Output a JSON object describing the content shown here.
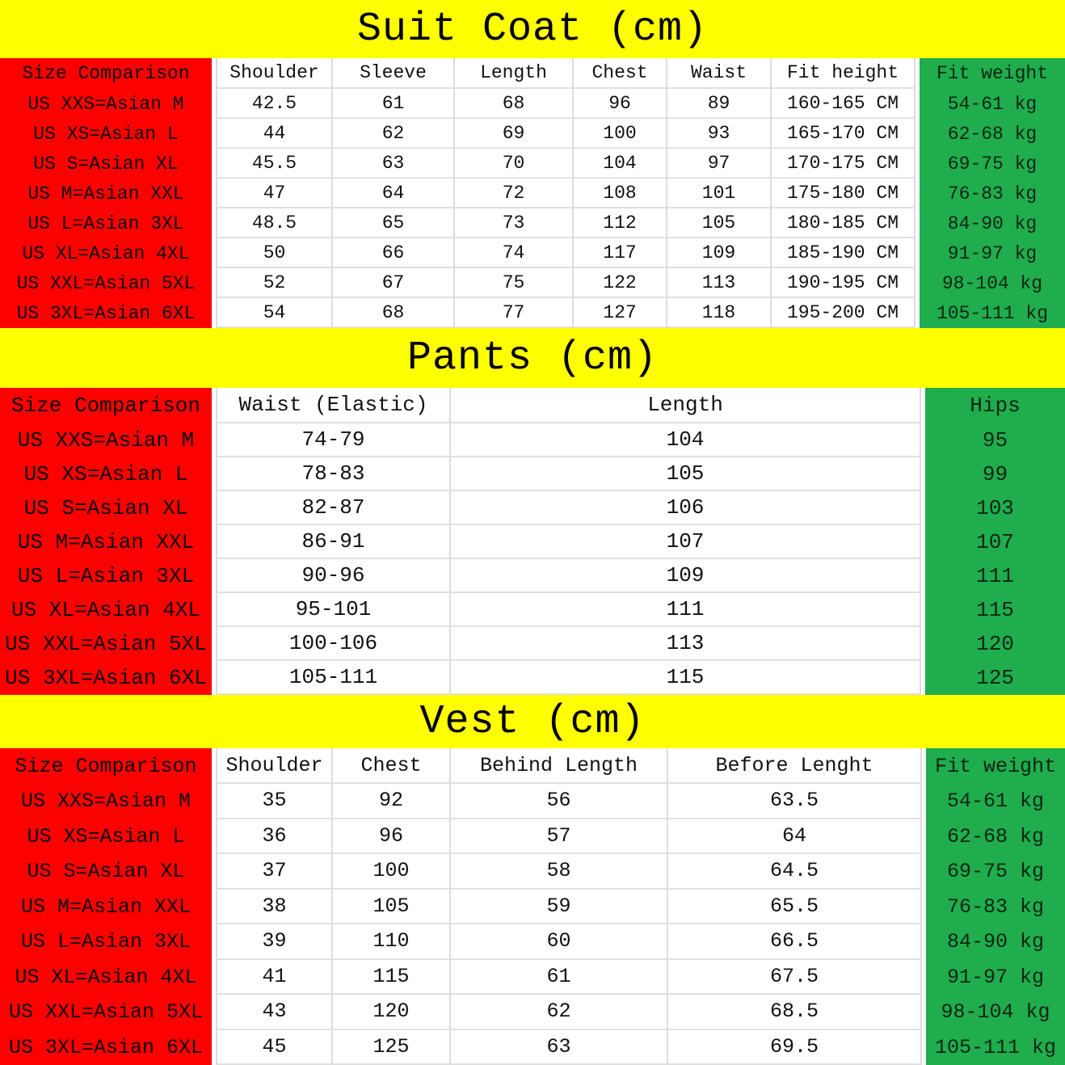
{
  "colors": {
    "banner_yellow": "#ffff00",
    "size_column_red": "#fd0000",
    "accent_column_green": "#1fad4d",
    "grid_line": "#dcdcdc",
    "text": "#000000"
  },
  "tables": [
    {
      "title": "Suit Coat (cm)",
      "headers": [
        "Size Comparison",
        "Shoulder",
        "Sleeve",
        "Length",
        "Chest",
        "Waist",
        "Fit height",
        "Fit weight"
      ],
      "rows": [
        [
          "US XXS=Asian M",
          "42.5",
          "61",
          "68",
          "96",
          "89",
          "160-165 CM",
          "54-61 kg"
        ],
        [
          "US XS=Asian L",
          "44",
          "62",
          "69",
          "100",
          "93",
          "165-170 CM",
          "62-68 kg"
        ],
        [
          "US S=Asian XL",
          "45.5",
          "63",
          "70",
          "104",
          "97",
          "170-175 CM",
          "69-75 kg"
        ],
        [
          "US M=Asian XXL",
          "47",
          "64",
          "72",
          "108",
          "101",
          "175-180 CM",
          "76-83 kg"
        ],
        [
          "US L=Asian 3XL",
          "48.5",
          "65",
          "73",
          "112",
          "105",
          "180-185 CM",
          "84-90 kg"
        ],
        [
          "US XL=Asian 4XL",
          "50",
          "66",
          "74",
          "117",
          "109",
          "185-190 CM",
          "91-97 kg"
        ],
        [
          "US XXL=Asian 5XL",
          "52",
          "67",
          "75",
          "122",
          "113",
          "190-195 CM",
          "98-104 kg"
        ],
        [
          "US 3XL=Asian 6XL",
          "54",
          "68",
          "77",
          "127",
          "118",
          "195-200 CM",
          "105-111 kg"
        ]
      ]
    },
    {
      "title": "Pants (cm)",
      "headers": [
        "Size Comparison",
        "Waist (Elastic)",
        "Length",
        "Hips"
      ],
      "rows": [
        [
          "US XXS=Asian M",
          "74-79",
          "104",
          "95"
        ],
        [
          "US XS=Asian L",
          "78-83",
          "105",
          "99"
        ],
        [
          "US S=Asian XL",
          "82-87",
          "106",
          "103"
        ],
        [
          "US M=Asian XXL",
          "86-91",
          "107",
          "107"
        ],
        [
          "US L=Asian 3XL",
          "90-96",
          "109",
          "111"
        ],
        [
          "US XL=Asian 4XL",
          "95-101",
          "111",
          "115"
        ],
        [
          "US XXL=Asian 5XL",
          "100-106",
          "113",
          "120"
        ],
        [
          "US 3XL=Asian 6XL",
          "105-111",
          "115",
          "125"
        ]
      ]
    },
    {
      "title": "Vest (cm)",
      "headers": [
        "Size Comparison",
        "Shoulder",
        "Chest",
        "Behind Length",
        "Before Lenght",
        "Fit weight"
      ],
      "rows": [
        [
          "US XXS=Asian M",
          "35",
          "92",
          "56",
          "63.5",
          "54-61 kg"
        ],
        [
          "US XS=Asian L",
          "36",
          "96",
          "57",
          "64",
          "62-68 kg"
        ],
        [
          "US S=Asian XL",
          "37",
          "100",
          "58",
          "64.5",
          "69-75 kg"
        ],
        [
          "US M=Asian XXL",
          "38",
          "105",
          "59",
          "65.5",
          "76-83 kg"
        ],
        [
          "US L=Asian 3XL",
          "39",
          "110",
          "60",
          "66.5",
          "84-90 kg"
        ],
        [
          "US XL=Asian 4XL",
          "41",
          "115",
          "61",
          "67.5",
          "91-97 kg"
        ],
        [
          "US XXL=Asian 5XL",
          "43",
          "120",
          "62",
          "68.5",
          "98-104 kg"
        ],
        [
          "US 3XL=Asian 6XL",
          "45",
          "125",
          "63",
          "69.5",
          "105-111 kg"
        ]
      ]
    }
  ]
}
